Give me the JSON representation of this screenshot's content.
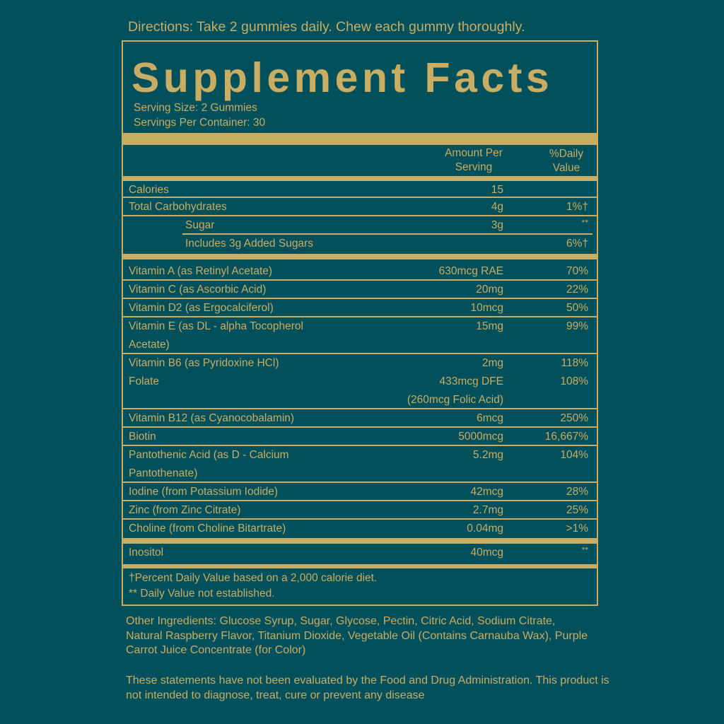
{
  "directions": "Directions: Take 2 gummies daily. Chew each gummy thoroughly.",
  "title": "Supplement Facts",
  "serving_size": "Serving Size: 2 Gummies",
  "servings_per_container": "Servings Per Container: 30",
  "header": {
    "amount_line1": "Amount Per",
    "amount_line2": "Serving",
    "dv_line1": "%Daily",
    "dv_line2": "Value"
  },
  "colors": {
    "background": "#01505c",
    "accent": "#c8ad62"
  },
  "macros": [
    {
      "name": "Calories",
      "amount": "15",
      "dv": ""
    },
    {
      "name": "Total Carbohydrates",
      "amount": "4g",
      "dv": "1%†"
    },
    {
      "name": "Sugar",
      "amount": "3g",
      "dv": "**"
    },
    {
      "name": "Includes 3g Added Sugars",
      "amount": "",
      "dv": "6%†"
    }
  ],
  "vitamins": [
    {
      "name": "Vitamin A (as Retinyl Acetate)",
      "amount": "630mcg RAE",
      "dv": "70%"
    },
    {
      "name": "Vitamin C (as Ascorbic Acid)",
      "amount": "20mg",
      "dv": "22%"
    },
    {
      "name": "Vitamin D2 (as Ergocalciferol)",
      "amount": "10mcg",
      "dv": "50%"
    },
    {
      "name": "Vitamin E (as DL - alpha Tocopherol Acetate)",
      "amount": "15mg",
      "dv": "99%"
    },
    {
      "name": "Vitamin B6 (as Pyridoxine HCl)",
      "amount": "2mg",
      "dv": "118%"
    },
    {
      "name": "Folate",
      "amount": "433mcg DFE",
      "amount_note": "(260mcg Folic Acid)",
      "dv": "108%"
    },
    {
      "name": "Vitamin B12 (as Cyanocobalamin)",
      "amount": "6mcg",
      "dv": "250%"
    },
    {
      "name": "Biotin",
      "amount": "5000mcg",
      "dv": "16,667%"
    },
    {
      "name": "Pantothenic Acid (as D - Calcium Pantothenate)",
      "amount": "5.2mg",
      "dv": "104%"
    },
    {
      "name": "Iodine (from Potassium Iodide)",
      "amount": "42mcg",
      "dv": "28%"
    },
    {
      "name": "Zinc (from Zinc Citrate)",
      "amount": "2.7mg",
      "dv": "25%"
    },
    {
      "name": "Choline (from Choline Bitartrate)",
      "amount": "0.04mg",
      "dv": ">1%"
    }
  ],
  "other": [
    {
      "name": "Inositol",
      "amount": "40mcg",
      "dv": "**"
    }
  ],
  "footnotes": [
    "†Percent Daily Value based on a 2,000 calorie diet.",
    "** Daily Value not established."
  ],
  "other_ingredients": "Other Ingredients: Glucose Syrup, Sugar, Glycose, Pectin, Citric Acid, Sodium Citrate, Natural Raspberry Flavor, Titanium Dioxide, Vegetable Oil (Contains Carnauba Wax), Purple Carrot Juice Concentrate (for Color)",
  "disclaimer": "These statements have not been evaluated by the Food and Drug Administration. This product is not intended to diagnose, treat, cure or prevent any disease"
}
